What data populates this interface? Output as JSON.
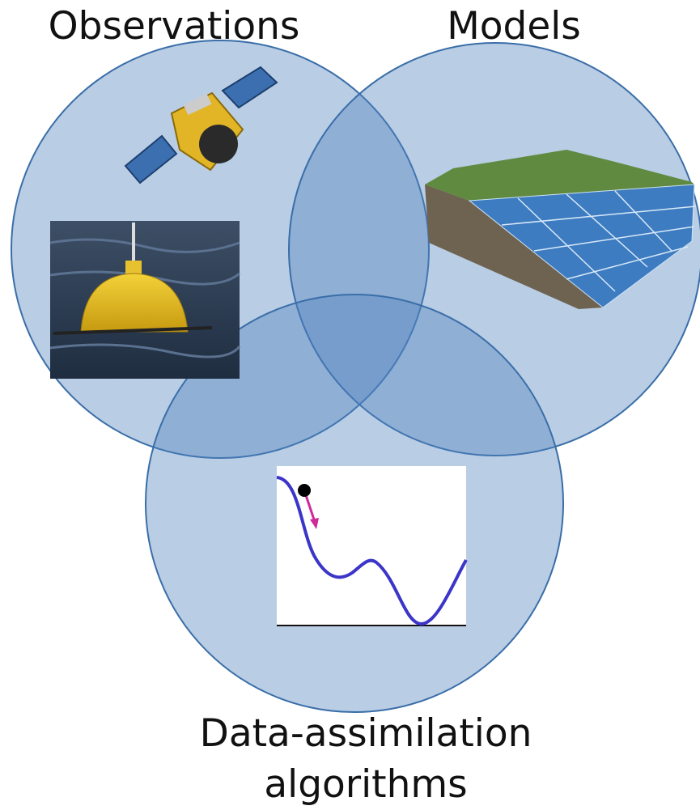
{
  "nodes": [
    {
      "label": "Observations"
    },
    {
      "label": "Models"
    },
    {
      "label_lines": [
        "Data-assimilation",
        "algorithms"
      ]
    }
  ]
}
